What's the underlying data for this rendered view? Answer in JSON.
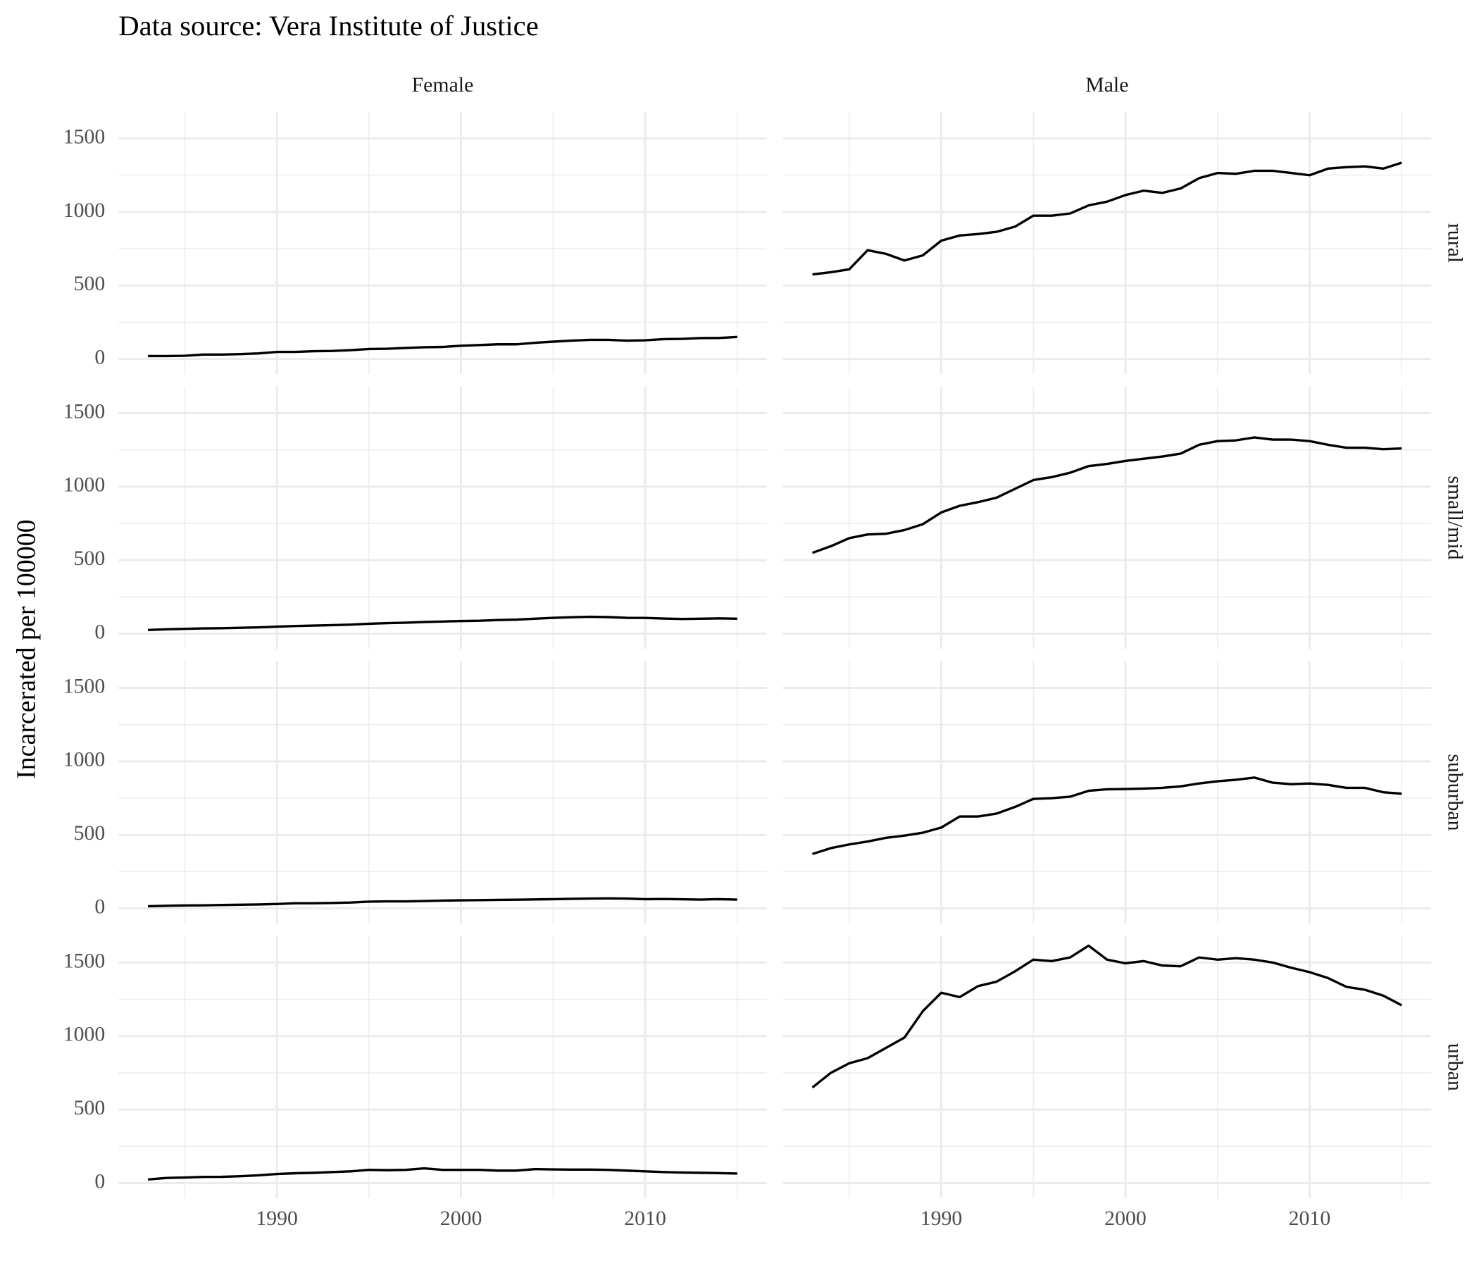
{
  "chart_data": {
    "type": "line",
    "title": "Data source: Vera Institute of Justice",
    "y_label": "Incarcerated per 100000",
    "columns": [
      "Female",
      "Male"
    ],
    "rows": [
      "rural",
      "small/mid",
      "suburban",
      "urban"
    ],
    "x": [
      1983,
      1984,
      1985,
      1986,
      1987,
      1988,
      1989,
      1990,
      1991,
      1992,
      1993,
      1994,
      1995,
      1996,
      1997,
      1998,
      1999,
      2000,
      2001,
      2002,
      2003,
      2004,
      2005,
      2006,
      2007,
      2008,
      2009,
      2010,
      2011,
      2012,
      2013,
      2014,
      2015
    ],
    "panels": [
      [
        [
          20,
          20,
          22,
          30,
          30,
          33,
          38,
          48,
          48,
          53,
          55,
          60,
          68,
          70,
          75,
          80,
          82,
          90,
          95,
          100,
          100,
          110,
          118,
          125,
          130,
          130,
          125,
          127,
          135,
          137,
          142,
          143,
          150
        ],
        [
          575,
          590,
          610,
          740,
          715,
          670,
          705,
          805,
          840,
          850,
          865,
          900,
          975,
          975,
          990,
          1045,
          1070,
          1115,
          1145,
          1130,
          1160,
          1230,
          1265,
          1260,
          1280,
          1280,
          1265,
          1250,
          1295,
          1305,
          1310,
          1295,
          1335
        ]
      ],
      [
        [
          25,
          30,
          33,
          36,
          37,
          40,
          43,
          48,
          52,
          55,
          58,
          62,
          68,
          72,
          75,
          80,
          83,
          86,
          88,
          93,
          96,
          102,
          108,
          112,
          115,
          113,
          108,
          107,
          103,
          100,
          102,
          104,
          102
        ],
        [
          550,
          595,
          650,
          675,
          680,
          705,
          745,
          825,
          870,
          895,
          925,
          985,
          1045,
          1065,
          1095,
          1140,
          1155,
          1175,
          1190,
          1205,
          1225,
          1285,
          1310,
          1315,
          1335,
          1320,
          1320,
          1310,
          1285,
          1265,
          1265,
          1255,
          1260
        ]
      ],
      [
        [
          15,
          18,
          20,
          21,
          23,
          25,
          27,
          30,
          35,
          35,
          37,
          40,
          46,
          48,
          48,
          50,
          53,
          55,
          56,
          58,
          59,
          61,
          63,
          65,
          67,
          68,
          67,
          63,
          64,
          62,
          60,
          63,
          60
        ],
        [
          370,
          410,
          435,
          455,
          480,
          495,
          515,
          550,
          625,
          625,
          645,
          690,
          745,
          750,
          760,
          800,
          810,
          812,
          815,
          820,
          830,
          850,
          865,
          875,
          890,
          855,
          845,
          850,
          840,
          820,
          820,
          790,
          780
        ]
      ],
      [
        [
          25,
          35,
          38,
          42,
          43,
          47,
          53,
          62,
          67,
          70,
          75,
          80,
          90,
          88,
          90,
          100,
          90,
          90,
          90,
          85,
          85,
          95,
          93,
          92,
          92,
          90,
          85,
          80,
          75,
          72,
          70,
          68,
          65
        ],
        [
          650,
          750,
          815,
          850,
          920,
          990,
          1170,
          1295,
          1265,
          1340,
          1370,
          1440,
          1520,
          1510,
          1535,
          1615,
          1520,
          1495,
          1510,
          1480,
          1475,
          1535,
          1520,
          1530,
          1520,
          1500,
          1465,
          1435,
          1395,
          1335,
          1315,
          1275,
          1210
        ]
      ]
    ],
    "color": "#000000",
    "xlim": [
      1981.4,
      2016.6
    ],
    "xticks": [
      1990,
      2000,
      2010
    ],
    "ylim": [
      -104,
      1682
    ],
    "yticks": [
      0,
      500,
      1000,
      1500
    ],
    "grid": true
  }
}
